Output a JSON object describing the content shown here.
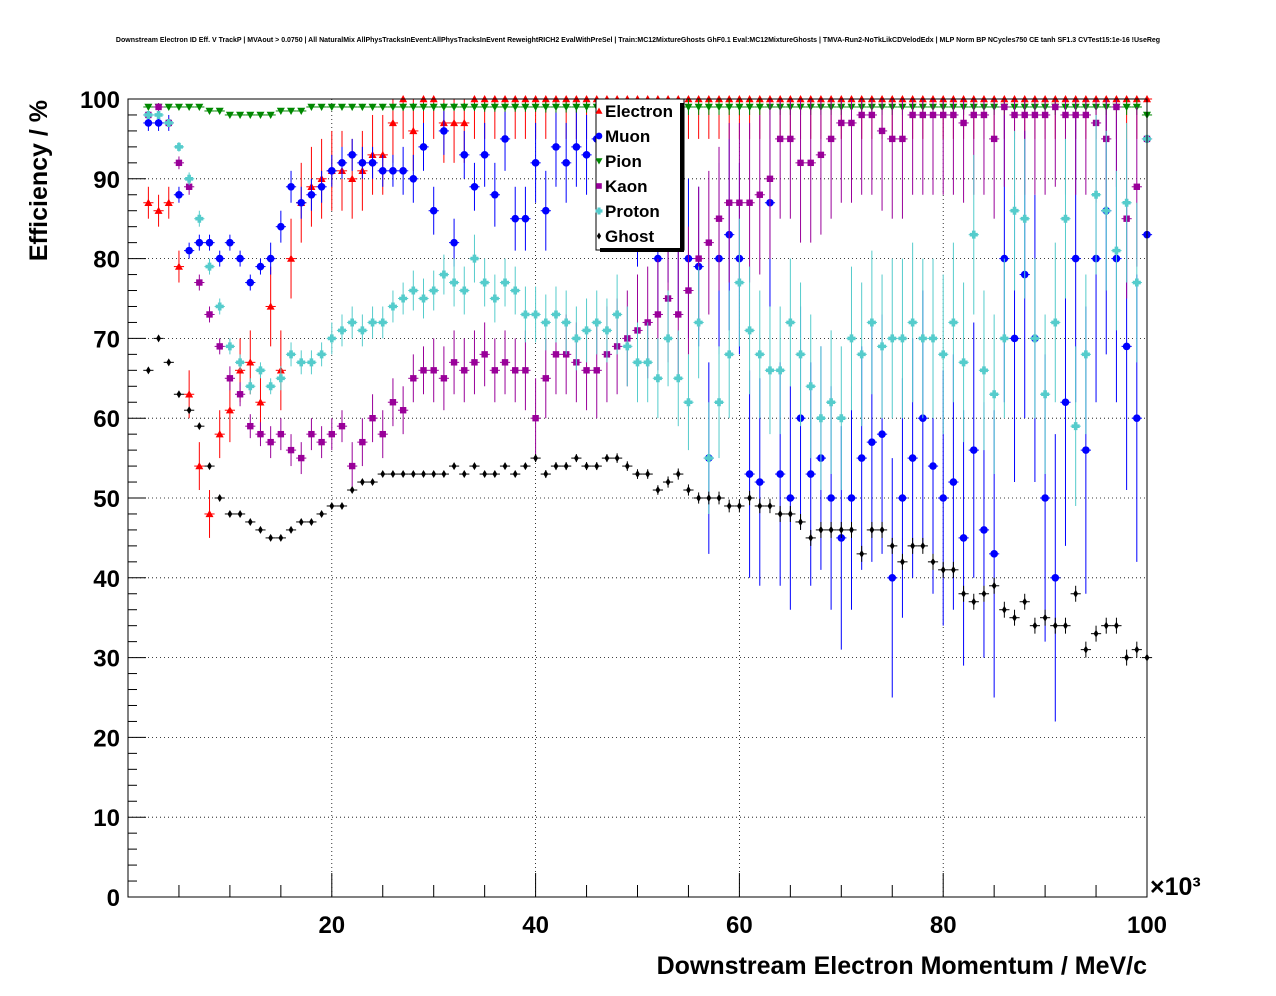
{
  "chart_data": {
    "type": "scatter",
    "title": "Downstream Electron ID Eff. V TrackP | MVAout > 0.0750 | All NaturalMix AllPhysTracksInEvent:AllPhysTracksInEvent ReweightRICH2 EvalWithPreSel | Train:MC12MixtureGhosts GhF0.1 Eval:MC12MixtureGhosts | TMVA-Run2-NoTkLikCDVelodEdx | MLP Norm BP NCycles750 CE tanh SF1.3 CVTest15:1e-16 !UseReg",
    "xlabel": "Downstream Electron Momentum / MeV/c",
    "ylabel": "Efficiency / %",
    "x_multiplier_label": "×10³",
    "xlim": [
      0,
      100
    ],
    "ylim": [
      0,
      100
    ],
    "x_unit_scale": 1000,
    "x_ticks": [
      "20",
      "40",
      "60",
      "80",
      "100"
    ],
    "y_ticks": [
      "0",
      "10",
      "20",
      "30",
      "40",
      "50",
      "60",
      "70",
      "80",
      "90",
      "100"
    ],
    "grid": true,
    "legend_position": "top-center",
    "x": [
      2,
      3,
      4,
      5,
      6,
      7,
      8,
      9,
      10,
      11,
      12,
      13,
      14,
      15,
      16,
      17,
      18,
      19,
      20,
      21,
      22,
      23,
      24,
      25,
      26,
      27,
      28,
      29,
      30,
      31,
      32,
      33,
      34,
      35,
      36,
      37,
      38,
      39,
      40,
      41,
      42,
      43,
      44,
      45,
      46,
      47,
      48,
      49,
      50,
      51,
      52,
      53,
      54,
      55,
      56,
      57,
      58,
      59,
      60,
      61,
      62,
      63,
      64,
      65,
      66,
      67,
      68,
      69,
      70,
      71,
      72,
      73,
      74,
      75,
      76,
      77,
      78,
      79,
      80,
      81,
      82,
      83,
      84,
      85,
      86,
      87,
      88,
      89,
      90,
      91,
      92,
      93,
      94,
      95,
      96,
      97,
      98,
      99,
      100
    ],
    "series": [
      {
        "name": "Electron",
        "color": "#ff0000",
        "marker": "triangle-up",
        "values": [
          87,
          86,
          87,
          79,
          63,
          54,
          48,
          58,
          61,
          66,
          67,
          62,
          74,
          66,
          80,
          87,
          89,
          90,
          91,
          91,
          90,
          91,
          93,
          93,
          97,
          100,
          96,
          100,
          100,
          97,
          97,
          97,
          100,
          100,
          100,
          100,
          100,
          100,
          100,
          100,
          100,
          100,
          100,
          100,
          100,
          100,
          100,
          100,
          100,
          100,
          100,
          100,
          100,
          100,
          100,
          100,
          100,
          100,
          100,
          100,
          100,
          100,
          100,
          100,
          100,
          100,
          100,
          100,
          100,
          100,
          100,
          100,
          100,
          100,
          100,
          100,
          100,
          100,
          100,
          100,
          100,
          100,
          100,
          100,
          100,
          100,
          100,
          100,
          100,
          100,
          100,
          100,
          100,
          100,
          100,
          100,
          100,
          100,
          100
        ],
        "errors": [
          2,
          2,
          2,
          2,
          3,
          3,
          3,
          3,
          4,
          4,
          4,
          4,
          5,
          5,
          5,
          5,
          5,
          5,
          5,
          5,
          5,
          5,
          5,
          5,
          5,
          5,
          5,
          5,
          5,
          5,
          5,
          5,
          5,
          5,
          5,
          5,
          5,
          5,
          5,
          5,
          5,
          5,
          5,
          5,
          5,
          5,
          5,
          5,
          5,
          5,
          5,
          5,
          5,
          5,
          5,
          5,
          5,
          5,
          5,
          5,
          5,
          5,
          5,
          5,
          5,
          5,
          5,
          5,
          5,
          5,
          5,
          5,
          5,
          5,
          5,
          5,
          5,
          5,
          5,
          5,
          5,
          5,
          5,
          5,
          5,
          5,
          5,
          5,
          5,
          5,
          5,
          5,
          5,
          5,
          5,
          5,
          5,
          5,
          5
        ]
      },
      {
        "name": "Muon",
        "color": "#0000ff",
        "marker": "circle",
        "values": [
          97,
          97,
          97,
          88,
          81,
          82,
          82,
          80,
          82,
          80,
          77,
          79,
          80,
          84,
          89,
          87,
          88,
          89,
          91,
          92,
          93,
          92,
          92,
          91,
          91,
          91,
          90,
          94,
          86,
          96,
          82,
          93,
          89,
          93,
          88,
          95,
          85,
          85,
          92,
          86,
          94,
          92,
          94,
          93,
          95,
          90,
          93,
          90,
          85,
          88,
          80,
          85,
          82,
          80,
          79,
          55,
          80,
          83,
          80,
          53,
          52,
          87,
          53,
          50,
          60,
          53,
          55,
          50,
          45,
          50,
          55,
          57,
          58,
          40,
          50,
          55,
          60,
          54,
          50,
          52,
          45,
          56,
          46,
          43,
          80,
          70,
          78,
          70,
          50,
          40,
          62,
          80,
          56,
          80,
          86,
          80,
          69,
          60,
          83
        ],
        "errors": [
          1,
          1,
          1,
          1,
          1,
          1,
          1,
          1,
          1,
          1,
          1,
          1,
          2,
          2,
          2,
          2,
          2,
          2,
          2,
          2,
          2,
          2,
          2,
          2,
          2,
          3,
          3,
          3,
          3,
          3,
          3,
          3,
          3,
          4,
          4,
          4,
          4,
          4,
          5,
          5,
          5,
          5,
          5,
          5,
          5,
          5,
          6,
          6,
          6,
          7,
          7,
          8,
          9,
          10,
          10,
          12,
          12,
          12,
          12,
          13,
          13,
          13,
          14,
          14,
          14,
          14,
          14,
          14,
          14,
          14,
          14,
          15,
          15,
          15,
          15,
          15,
          16,
          16,
          16,
          16,
          16,
          16,
          16,
          18,
          18,
          18,
          18,
          18,
          18,
          18,
          18,
          18,
          18,
          18,
          18,
          18,
          18,
          18,
          18
        ]
      },
      {
        "name": "Pion",
        "color": "#008800",
        "marker": "triangle-down",
        "values": [
          99,
          99,
          99,
          99,
          99,
          99,
          98.5,
          98.5,
          98,
          98,
          98,
          98,
          98,
          98.5,
          98.5,
          98.5,
          99,
          99,
          99,
          99,
          99,
          99,
          99,
          99,
          99,
          99,
          99,
          99,
          99,
          99,
          99,
          99,
          99,
          99,
          99,
          99,
          99,
          99,
          99,
          99,
          99,
          99,
          99,
          99,
          99,
          99,
          99,
          99,
          99,
          99,
          99,
          99,
          99,
          99,
          99,
          99,
          99,
          99,
          99,
          99,
          99,
          99,
          99,
          99,
          99,
          99,
          99,
          99,
          99,
          99,
          99,
          99,
          99,
          99,
          99,
          99,
          99,
          99,
          99,
          99,
          99,
          99,
          99,
          99,
          99,
          99,
          99,
          99,
          99,
          99,
          99,
          99,
          99,
          99,
          99,
          99,
          99,
          99,
          98
        ],
        "errors": [
          0.3,
          0.3,
          0.3,
          0.3,
          0.3,
          0.3,
          0.3,
          0.3,
          0.3,
          0.3,
          0.3,
          0.3,
          0.3,
          0.3,
          0.3,
          0.3,
          0.3,
          0.3,
          0.3,
          0.3,
          0.4,
          0.4,
          0.4,
          0.4,
          0.4,
          0.5,
          0.5,
          0.5,
          0.5,
          0.5,
          0.5,
          0.5,
          0.5,
          0.6,
          0.6,
          0.6,
          0.6,
          0.6,
          0.6,
          0.7,
          0.7,
          0.7,
          0.7,
          0.7,
          0.8,
          0.8,
          0.8,
          0.8,
          0.9,
          0.9,
          0.9,
          1,
          1,
          1,
          1,
          1,
          1,
          1,
          1,
          1,
          1,
          1,
          1,
          1,
          1,
          1,
          1,
          1,
          1,
          1,
          1,
          1,
          1,
          1,
          1,
          1,
          1,
          1,
          1,
          1,
          1,
          1,
          1,
          1,
          1,
          1,
          1,
          1,
          1,
          1,
          1,
          1,
          1,
          1,
          1,
          1,
          1,
          1,
          1
        ]
      },
      {
        "name": "Kaon",
        "color": "#990099",
        "marker": "square",
        "values": [
          98,
          99,
          97,
          92,
          89,
          77,
          73,
          69,
          65,
          63,
          59,
          58,
          57,
          58,
          56,
          55,
          58,
          57,
          58,
          59,
          54,
          57,
          60,
          58,
          62,
          61,
          65,
          66,
          66,
          65,
          67,
          66,
          67,
          68,
          66,
          67,
          66,
          66,
          60,
          65,
          68,
          68,
          67,
          66,
          66,
          68,
          69,
          70,
          71,
          72,
          73,
          75,
          73,
          76,
          80,
          82,
          85,
          87,
          87,
          87,
          88,
          90,
          95,
          95,
          92,
          92,
          93,
          95,
          97,
          97,
          98,
          98,
          96,
          95,
          95,
          98,
          98,
          98,
          98,
          98,
          97,
          98,
          98,
          95,
          99,
          98,
          98,
          98,
          98,
          99,
          98,
          98,
          98,
          97,
          95,
          99,
          85,
          89,
          95
        ],
        "errors": [
          0.5,
          0.5,
          0.6,
          0.8,
          1,
          1,
          1,
          1,
          1.5,
          1.5,
          1.5,
          1.5,
          2,
          2,
          2,
          2,
          2,
          2,
          2,
          2,
          3,
          3,
          3,
          3,
          3,
          3,
          3,
          3,
          4,
          4,
          4,
          4,
          4,
          4,
          4,
          4,
          4,
          5,
          5,
          5,
          5,
          5,
          5,
          5,
          6,
          6,
          6,
          6,
          7,
          7,
          7,
          8,
          8,
          8,
          9,
          9,
          9,
          10,
          10,
          10,
          10,
          10,
          10,
          10,
          10,
          10,
          10,
          10,
          10,
          10,
          10,
          10,
          10,
          10,
          10,
          10,
          10,
          10,
          10,
          10,
          10,
          10,
          10,
          10,
          10,
          10,
          10,
          10,
          10,
          10,
          10,
          10,
          10,
          10,
          10,
          10,
          10,
          10,
          10
        ]
      },
      {
        "name": "Proton",
        "color": "#55cccc",
        "marker": "cross",
        "values": [
          98,
          98,
          97,
          94,
          90,
          85,
          79,
          74,
          69,
          67,
          64,
          66,
          64,
          65,
          68,
          67,
          67,
          68,
          70,
          71,
          72,
          71,
          72,
          72,
          74,
          75,
          76,
          75,
          76,
          78,
          77,
          76,
          80,
          77,
          75,
          77,
          76,
          73,
          73,
          72,
          73,
          72,
          70,
          71,
          72,
          71,
          73,
          69,
          67,
          67,
          65,
          70,
          65,
          62,
          72,
          55,
          62,
          68,
          77,
          71,
          68,
          66,
          66,
          72,
          68,
          64,
          60,
          62,
          60,
          70,
          68,
          72,
          69,
          70,
          70,
          72,
          70,
          70,
          68,
          72,
          67,
          83,
          66,
          63,
          70,
          86,
          85,
          70,
          63,
          72,
          85,
          59,
          68,
          88,
          86,
          81,
          87,
          77,
          95
        ],
        "errors": [
          0.5,
          0.5,
          0.5,
          0.6,
          0.8,
          1,
          1,
          1,
          1,
          1,
          1,
          1,
          1,
          1.5,
          1.5,
          1.5,
          1.5,
          1.5,
          2,
          2,
          2,
          2,
          2,
          2,
          2,
          2,
          2.5,
          2.5,
          2.5,
          2.5,
          3,
          3,
          3,
          3,
          3,
          3,
          3,
          3.5,
          3.5,
          3.5,
          3.5,
          4,
          4,
          4,
          4,
          4,
          5,
          5,
          5,
          5,
          5,
          6,
          6,
          6,
          7,
          7,
          7,
          8,
          8,
          8,
          8,
          8,
          8,
          8,
          9,
          9,
          9,
          9,
          9,
          9,
          9,
          9,
          9,
          10,
          10,
          10,
          10,
          10,
          10,
          10,
          10,
          10,
          10,
          10,
          10,
          10,
          10,
          10,
          10,
          10,
          10,
          10,
          10,
          10,
          10,
          10,
          10,
          10,
          10
        ]
      },
      {
        "name": "Ghost",
        "color": "#000000",
        "marker": "diamond",
        "values": [
          66,
          70,
          67,
          63,
          61,
          59,
          54,
          50,
          48,
          48,
          47,
          46,
          45,
          45,
          46,
          47,
          47,
          48,
          49,
          49,
          51,
          52,
          52,
          53,
          53,
          53,
          53,
          53,
          53,
          53,
          54,
          53,
          54,
          53,
          53,
          54,
          53,
          54,
          55,
          53,
          54,
          54,
          55,
          54,
          54,
          55,
          55,
          54,
          53,
          53,
          51,
          52,
          53,
          51,
          50,
          50,
          50,
          49,
          49,
          50,
          49,
          49,
          48,
          48,
          47,
          45,
          46,
          46,
          46,
          46,
          43,
          46,
          46,
          44,
          42,
          44,
          44,
          42,
          41,
          41,
          38,
          37,
          38,
          39,
          36,
          35,
          37,
          34,
          35,
          34,
          34,
          38,
          31,
          33,
          34,
          34,
          30,
          31,
          30
        ],
        "errors": [
          0.3,
          0.3,
          0.3,
          0.3,
          0.3,
          0.3,
          0.3,
          0.3,
          0.3,
          0.3,
          0.3,
          0.3,
          0.3,
          0.3,
          0.3,
          0.3,
          0.3,
          0.3,
          0.3,
          0.3,
          0.3,
          0.3,
          0.3,
          0.3,
          0.3,
          0.3,
          0.3,
          0.3,
          0.3,
          0.4,
          0.4,
          0.4,
          0.4,
          0.4,
          0.4,
          0.4,
          0.4,
          0.4,
          0.5,
          0.5,
          0.5,
          0.5,
          0.5,
          0.5,
          0.5,
          0.5,
          0.6,
          0.6,
          0.6,
          0.6,
          0.6,
          0.7,
          0.7,
          0.7,
          0.7,
          0.8,
          0.8,
          0.8,
          0.8,
          0.9,
          0.9,
          0.9,
          1,
          1,
          1,
          1,
          1,
          1,
          1,
          1,
          1,
          1,
          1,
          1,
          1,
          1,
          1,
          1,
          1,
          1,
          1,
          1,
          1,
          1,
          1,
          1,
          1,
          1,
          1,
          1,
          1,
          1,
          1,
          1,
          1,
          1,
          1,
          1,
          1
        ]
      }
    ]
  }
}
